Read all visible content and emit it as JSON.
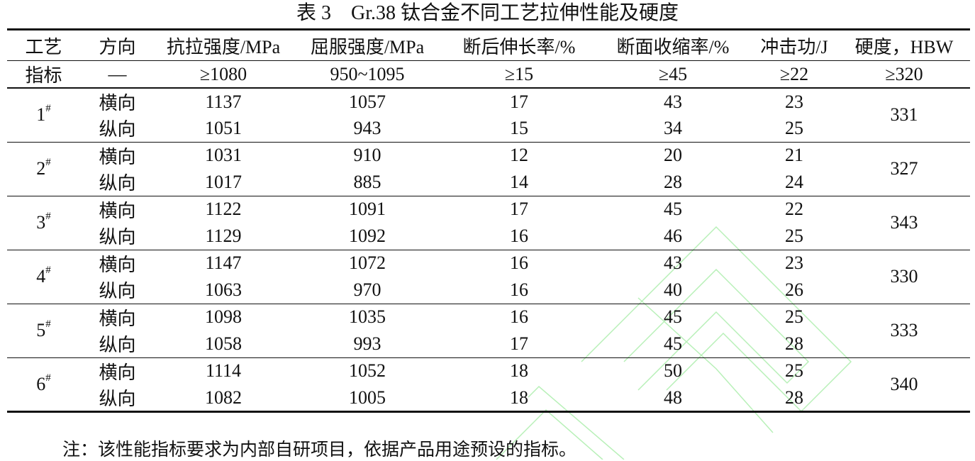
{
  "title": "表 3　Gr.38 钛合金不同工艺拉伸性能及硬度",
  "headers": [
    "工艺",
    "方向",
    "抗拉强度/MPa",
    "屈服强度/MPa",
    "断后伸长率/%",
    "断面收缩率/%",
    "冲击功/J",
    "硬度，HBW"
  ],
  "index_row": [
    "指标",
    "—",
    "≥1080",
    "950~1095",
    "≥15",
    "≥45",
    "≥22",
    "≥320"
  ],
  "groups": [
    {
      "process": "1",
      "sup": "#",
      "hardness": "331",
      "rows": [
        [
          "横向",
          "1137",
          "1057",
          "17",
          "43",
          "23"
        ],
        [
          "纵向",
          "1051",
          "943",
          "15",
          "34",
          "25"
        ]
      ]
    },
    {
      "process": "2",
      "sup": "#",
      "hardness": "327",
      "rows": [
        [
          "横向",
          "1031",
          "910",
          "12",
          "20",
          "21"
        ],
        [
          "纵向",
          "1017",
          "885",
          "14",
          "28",
          "24"
        ]
      ]
    },
    {
      "process": "3",
      "sup": "#",
      "hardness": "343",
      "rows": [
        [
          "横向",
          "1122",
          "1091",
          "17",
          "45",
          "22"
        ],
        [
          "纵向",
          "1129",
          "1092",
          "16",
          "46",
          "25"
        ]
      ]
    },
    {
      "process": "4",
      "sup": "#",
      "hardness": "330",
      "rows": [
        [
          "横向",
          "1147",
          "1072",
          "16",
          "43",
          "23"
        ],
        [
          "纵向",
          "1063",
          "970",
          "16",
          "40",
          "26"
        ]
      ]
    },
    {
      "process": "5",
      "sup": "#",
      "hardness": "333",
      "rows": [
        [
          "横向",
          "1098",
          "1035",
          "16",
          "45",
          "25"
        ],
        [
          "纵向",
          "1058",
          "993",
          "17",
          "45",
          "28"
        ]
      ]
    },
    {
      "process": "6",
      "sup": "#",
      "hardness": "340",
      "rows": [
        [
          "横向",
          "1114",
          "1052",
          "18",
          "50",
          "25"
        ],
        [
          "纵向",
          "1082",
          "1005",
          "18",
          "48",
          "28"
        ]
      ]
    }
  ],
  "note": "注：该性能指标要求为内部自研项目，依据产品用途预设的指标。",
  "colors": {
    "text": "#111111",
    "watermark": "#b8f0b8"
  }
}
